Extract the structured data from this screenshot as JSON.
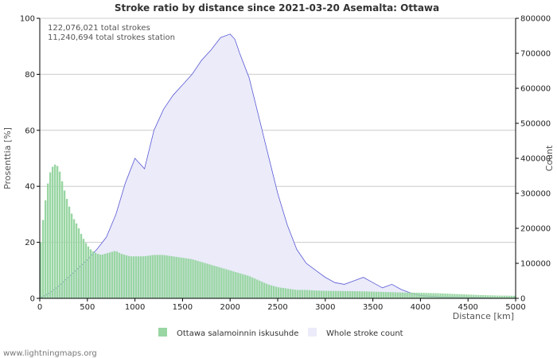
{
  "chart_data": {
    "type": "area",
    "title": "Stroke ratio by distance since 2021-03-20 Asemalta: Ottawa",
    "info_lines": [
      "122,076,021 total strokes",
      "11,240,694 total strokes station"
    ],
    "xlabel": "Distance   [km]",
    "ylabel_left": "Prosenttia   [%]",
    "ylabel_right": "Count",
    "xlim": [
      0,
      5000
    ],
    "ylim_left": [
      0,
      100
    ],
    "ylim_right": [
      0,
      800000
    ],
    "x_ticks": [
      "0",
      "500",
      "1000",
      "1500",
      "2000",
      "2500",
      "3000",
      "3500",
      "4000",
      "4500",
      "5000"
    ],
    "y_left_ticks": [
      "0",
      "20",
      "40",
      "60",
      "80",
      "100"
    ],
    "y_right_ticks": [
      "0",
      "100000",
      "200000",
      "300000",
      "400000",
      "500000",
      "600000",
      "700000",
      "800000"
    ],
    "grid": true,
    "legend_position": "bottom",
    "series": [
      {
        "name": "Ottawa salamoinnin iskusuhde",
        "axis": "left",
        "style": "bars",
        "color": "#99d6a3",
        "x": [
          0,
          50,
          100,
          150,
          200,
          250,
          300,
          350,
          400,
          450,
          500,
          550,
          600,
          650,
          700,
          750,
          800,
          850,
          900,
          950,
          1000,
          1100,
          1200,
          1300,
          1400,
          1500,
          1600,
          1700,
          1800,
          1900,
          2000,
          2100,
          2200,
          2300,
          2400,
          2500,
          2600,
          2700,
          2800,
          2900,
          3000,
          3200,
          3400,
          3600,
          3800,
          4000,
          4200,
          4400,
          4600,
          4800,
          5000
        ],
        "values": [
          16,
          32,
          44,
          48,
          47,
          40,
          34,
          29,
          26,
          22,
          19,
          17,
          16,
          15.5,
          16,
          16.5,
          17,
          16,
          15.5,
          15,
          15,
          15,
          15.5,
          15.5,
          15,
          14.5,
          14,
          13,
          12,
          11,
          10,
          9,
          8,
          6.5,
          5,
          4,
          3.5,
          3,
          3,
          2.8,
          2.7,
          2.6,
          2.5,
          2.3,
          2.1,
          2,
          1.8,
          1.5,
          1.2,
          1.0,
          0.9
        ]
      },
      {
        "name": "Whole stroke count",
        "axis": "right",
        "style": "area",
        "color": "#ebebfa",
        "x": [
          0,
          100,
          200,
          300,
          400,
          500,
          600,
          700,
          800,
          900,
          1000,
          1100,
          1200,
          1300,
          1400,
          1500,
          1600,
          1700,
          1800,
          1900,
          2000,
          2050,
          2100,
          2200,
          2300,
          2400,
          2500,
          2600,
          2700,
          2800,
          2900,
          3000,
          3100,
          3200,
          3300,
          3400,
          3500,
          3600,
          3700,
          3800,
          3900,
          4000,
          4200,
          4400,
          4600,
          4800,
          5000
        ],
        "values": [
          0,
          15000,
          35000,
          60000,
          85000,
          110000,
          140000,
          175000,
          240000,
          330000,
          400000,
          370000,
          480000,
          540000,
          580000,
          610000,
          640000,
          680000,
          710000,
          745000,
          755000,
          740000,
          700000,
          630000,
          520000,
          410000,
          300000,
          210000,
          140000,
          100000,
          80000,
          60000,
          45000,
          40000,
          50000,
          60000,
          45000,
          30000,
          40000,
          25000,
          15000,
          8000,
          4000,
          2500,
          1500,
          1000,
          800
        ]
      }
    ]
  },
  "footer": "www.lightningmaps.org"
}
